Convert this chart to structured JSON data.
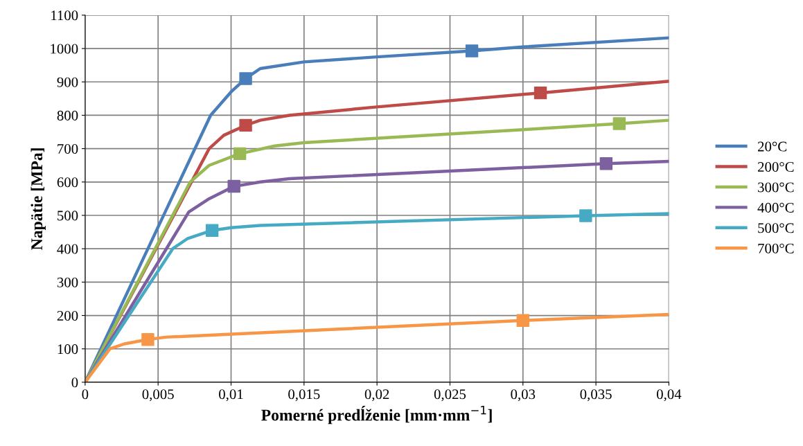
{
  "chart_data": {
    "type": "line",
    "xlabel": "Pomerné predĺženie [mm·mm$^{−1}$]",
    "ylabel": "Napätie [MPa]",
    "xlim": [
      0,
      0.04
    ],
    "ylim": [
      0,
      1100
    ],
    "xticks": [
      0,
      {
        "value": 0.005,
        "label": "0,005"
      },
      {
        "value": 0.01,
        "label": "0,01"
      },
      {
        "value": 0.015,
        "label": "0,015"
      },
      {
        "value": 0.02,
        "label": "0,02"
      },
      {
        "value": 0.025,
        "label": "0,025"
      },
      {
        "value": 0.03,
        "label": "0,03"
      },
      {
        "value": 0.035,
        "label": "0,035"
      },
      {
        "value": 0.04,
        "label": "0,04"
      }
    ],
    "yticks": [
      0,
      100,
      200,
      300,
      400,
      500,
      600,
      700,
      800,
      900,
      1000,
      1100
    ],
    "grid": true,
    "legend": "right",
    "line_style": "solid",
    "series": [
      {
        "name": "20°C",
        "color": "#4a7ebb",
        "x": [
          0,
          0.0086,
          0.01,
          0.011,
          0.012,
          0.015,
          0.02,
          0.0265,
          0.03,
          0.04
        ],
        "values": [
          0,
          800,
          870,
          910,
          940,
          960,
          975,
          993,
          1005,
          1032
        ]
      },
      {
        "name": "200°C",
        "color": "#be4b48",
        "x": [
          0,
          0.0085,
          0.0095,
          0.011,
          0.012,
          0.014,
          0.02,
          0.0312,
          0.04
        ],
        "values": [
          0,
          700,
          740,
          770,
          785,
          800,
          825,
          867,
          902
        ]
      },
      {
        "name": "300°C",
        "color": "#98b954",
        "x": [
          0,
          0.0072,
          0.0085,
          0.0106,
          0.013,
          0.015,
          0.03,
          0.0366,
          0.04
        ],
        "values": [
          0,
          600,
          650,
          685,
          708,
          718,
          757,
          775,
          785
        ]
      },
      {
        "name": "400°C",
        "color": "#7d60a0",
        "x": [
          0,
          0.0071,
          0.0085,
          0.0102,
          0.012,
          0.014,
          0.0357,
          0.04
        ],
        "values": [
          0,
          510,
          550,
          587,
          600,
          610,
          655,
          662
        ]
      },
      {
        "name": "500°C",
        "color": "#46aac5",
        "x": [
          0,
          0.006,
          0.007,
          0.0087,
          0.01,
          0.012,
          0.0343,
          0.04
        ],
        "values": [
          0,
          400,
          430,
          455,
          463,
          470,
          499,
          505
        ]
      },
      {
        "name": "700°C",
        "color": "#f79646",
        "x": [
          0,
          0.0017,
          0.0027,
          0.0043,
          0.0055,
          0.007,
          0.03,
          0.04
        ],
        "values": [
          0,
          100,
          115,
          128,
          135,
          138,
          185,
          203
        ]
      },
      {
        "type": "scatter",
        "marker": "square",
        "color": "#4a7ebb",
        "x": [
          0.011,
          0.0265
        ],
        "values": [
          910,
          993
        ]
      },
      {
        "type": "scatter",
        "marker": "square",
        "color": "#be4b48",
        "x": [
          0.011,
          0.0312
        ],
        "values": [
          770,
          867
        ]
      },
      {
        "type": "scatter",
        "marker": "square",
        "color": "#98b954",
        "x": [
          0.0106,
          0.0366
        ],
        "values": [
          685,
          775
        ]
      },
      {
        "type": "scatter",
        "marker": "square",
        "color": "#7d60a0",
        "x": [
          0.0102,
          0.0357
        ],
        "values": [
          587,
          655
        ]
      },
      {
        "type": "scatter",
        "marker": "square",
        "color": "#46aac5",
        "x": [
          0.0087,
          0.0343
        ],
        "values": [
          455,
          499
        ]
      },
      {
        "type": "scatter",
        "marker": "square",
        "color": "#f79646",
        "x": [
          0.0043,
          0.03
        ],
        "values": [
          128,
          185
        ]
      }
    ]
  }
}
